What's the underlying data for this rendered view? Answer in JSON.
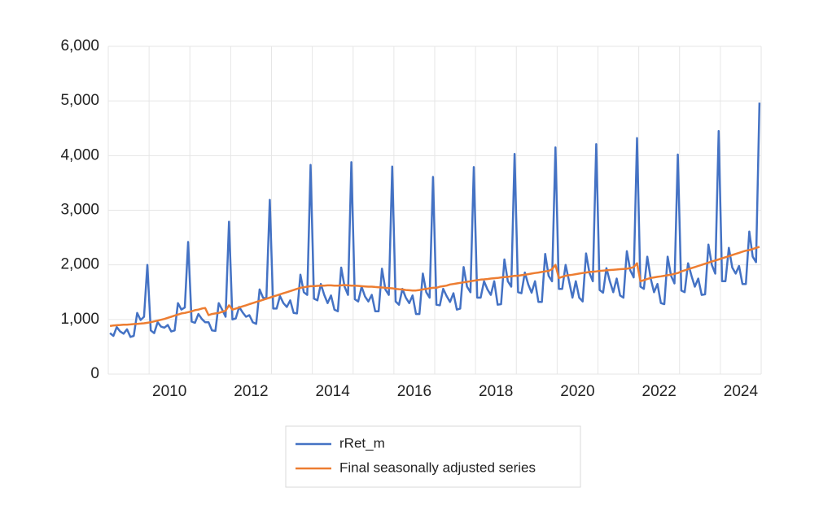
{
  "chart_data": {
    "type": "line",
    "xlim": [
      2009,
      2025
    ],
    "xgrid": [
      2009,
      2010,
      2011,
      2012,
      2013,
      2014,
      2015,
      2016,
      2017,
      2018,
      2019,
      2020,
      2021,
      2022,
      2023,
      2024,
      2025
    ],
    "xticks": [
      {
        "value": 2010.5,
        "label": "2010"
      },
      {
        "value": 2012.5,
        "label": "2012"
      },
      {
        "value": 2014.5,
        "label": "2014"
      },
      {
        "value": 2016.5,
        "label": "2016"
      },
      {
        "value": 2018.5,
        "label": "2018"
      },
      {
        "value": 2020.5,
        "label": "2020"
      },
      {
        "value": 2022.5,
        "label": "2022"
      },
      {
        "value": 2024.5,
        "label": "2024"
      }
    ],
    "ylim": [
      0,
      6000
    ],
    "yticks": [
      0,
      {
        "value": 1000,
        "label": "1,000"
      },
      {
        "value": 2000,
        "label": "2,000"
      },
      {
        "value": 3000,
        "label": "3,000"
      },
      {
        "value": 4000,
        "label": "4,000"
      },
      {
        "value": 5000,
        "label": "5,000"
      },
      {
        "value": 6000,
        "label": "6,000"
      }
    ],
    "grid": true,
    "legend": "bottom",
    "x": [
      2009.042,
      2009.125,
      2009.208,
      2009.292,
      2009.375,
      2009.458,
      2009.542,
      2009.625,
      2009.708,
      2009.792,
      2009.875,
      2009.958,
      2010.042,
      2010.125,
      2010.208,
      2010.292,
      2010.375,
      2010.458,
      2010.542,
      2010.625,
      2010.708,
      2010.792,
      2010.875,
      2010.958,
      2011.042,
      2011.125,
      2011.208,
      2011.292,
      2011.375,
      2011.458,
      2011.542,
      2011.625,
      2011.708,
      2011.792,
      2011.875,
      2011.958,
      2012.042,
      2012.125,
      2012.208,
      2012.292,
      2012.375,
      2012.458,
      2012.542,
      2012.625,
      2012.708,
      2012.792,
      2012.875,
      2012.958,
      2013.042,
      2013.125,
      2013.208,
      2013.292,
      2013.375,
      2013.458,
      2013.542,
      2013.625,
      2013.708,
      2013.792,
      2013.875,
      2013.958,
      2014.042,
      2014.125,
      2014.208,
      2014.292,
      2014.375,
      2014.458,
      2014.542,
      2014.625,
      2014.708,
      2014.792,
      2014.875,
      2014.958,
      2015.042,
      2015.125,
      2015.208,
      2015.292,
      2015.375,
      2015.458,
      2015.542,
      2015.625,
      2015.708,
      2015.792,
      2015.875,
      2015.958,
      2016.042,
      2016.125,
      2016.208,
      2016.292,
      2016.375,
      2016.458,
      2016.542,
      2016.625,
      2016.708,
      2016.792,
      2016.875,
      2016.958,
      2017.042,
      2017.125,
      2017.208,
      2017.292,
      2017.375,
      2017.458,
      2017.542,
      2017.625,
      2017.708,
      2017.792,
      2017.875,
      2017.958,
      2018.042,
      2018.125,
      2018.208,
      2018.292,
      2018.375,
      2018.458,
      2018.542,
      2018.625,
      2018.708,
      2018.792,
      2018.875,
      2018.958,
      2019.042,
      2019.125,
      2019.208,
      2019.292,
      2019.375,
      2019.458,
      2019.542,
      2019.625,
      2019.708,
      2019.792,
      2019.875,
      2019.958,
      2020.042,
      2020.125,
      2020.208,
      2020.292,
      2020.375,
      2020.458,
      2020.542,
      2020.625,
      2020.708,
      2020.792,
      2020.875,
      2020.958,
      2021.042,
      2021.125,
      2021.208,
      2021.292,
      2021.375,
      2021.458,
      2021.542,
      2021.625,
      2021.708,
      2021.792,
      2021.875,
      2021.958,
      2022.042,
      2022.125,
      2022.208,
      2022.292,
      2022.375,
      2022.458,
      2022.542,
      2022.625,
      2022.708,
      2022.792,
      2022.875,
      2022.958,
      2023.042,
      2023.125,
      2023.208,
      2023.292,
      2023.375,
      2023.458,
      2023.542,
      2023.625,
      2023.708,
      2023.792,
      2023.875,
      2023.958,
      2024.042,
      2024.125,
      2024.208,
      2024.292,
      2024.375,
      2024.458,
      2024.542,
      2024.625,
      2024.708,
      2024.792,
      2024.875,
      2024.958
    ],
    "series": [
      {
        "name": "rRet_m",
        "color": "#4472c4",
        "values": [
          750,
          700,
          860,
          780,
          740,
          820,
          680,
          700,
          1120,
          990,
          1050,
          2000,
          800,
          750,
          950,
          870,
          850,
          900,
          780,
          800,
          1300,
          1180,
          1220,
          2420,
          960,
          940,
          1100,
          1010,
          950,
          950,
          800,
          790,
          1300,
          1180,
          1050,
          2790,
          1000,
          1020,
          1230,
          1130,
          1050,
          1080,
          950,
          920,
          1550,
          1400,
          1380,
          3190,
          1200,
          1200,
          1430,
          1300,
          1230,
          1350,
          1120,
          1110,
          1820,
          1500,
          1450,
          3830,
          1380,
          1350,
          1650,
          1450,
          1300,
          1440,
          1180,
          1150,
          1950,
          1600,
          1450,
          3880,
          1370,
          1330,
          1600,
          1420,
          1330,
          1450,
          1150,
          1150,
          1930,
          1550,
          1450,
          3800,
          1330,
          1270,
          1560,
          1400,
          1300,
          1440,
          1100,
          1100,
          1840,
          1500,
          1400,
          3610,
          1270,
          1260,
          1560,
          1430,
          1320,
          1480,
          1180,
          1200,
          1960,
          1600,
          1500,
          3790,
          1400,
          1400,
          1700,
          1550,
          1450,
          1700,
          1270,
          1280,
          2100,
          1700,
          1600,
          4030,
          1500,
          1480,
          1860,
          1640,
          1490,
          1700,
          1320,
          1320,
          2200,
          1800,
          1700,
          4150,
          1560,
          1560,
          2000,
          1700,
          1400,
          1700,
          1400,
          1330,
          2210,
          1850,
          1700,
          4210,
          1540,
          1490,
          1940,
          1700,
          1500,
          1750,
          1440,
          1400,
          2250,
          1900,
          1770,
          4320,
          1600,
          1560,
          2150,
          1750,
          1500,
          1650,
          1300,
          1280,
          2150,
          1800,
          1660,
          4020,
          1530,
          1500,
          2030,
          1800,
          1600,
          1750,
          1450,
          1460,
          2370,
          2000,
          1840,
          4450,
          1700,
          1700,
          2310,
          1950,
          1840,
          1980,
          1650,
          1650,
          2610,
          2150,
          2050,
          4970
        ]
      },
      {
        "name": "Final seasonally adjusted series",
        "color": "#ed7d31",
        "values": [
          880,
          890,
          895,
          900,
          905,
          905,
          910,
          915,
          920,
          925,
          930,
          940,
          950,
          965,
          980,
          995,
          1010,
          1030,
          1050,
          1070,
          1090,
          1110,
          1120,
          1135,
          1150,
          1170,
          1180,
          1200,
          1210,
          1080,
          1100,
          1110,
          1120,
          1140,
          1160,
          1260,
          1180,
          1200,
          1220,
          1240,
          1260,
          1280,
          1300,
          1320,
          1340,
          1360,
          1380,
          1400,
          1420,
          1440,
          1460,
          1480,
          1500,
          1520,
          1540,
          1560,
          1580,
          1590,
          1600,
          1610,
          1610,
          1615,
          1620,
          1620,
          1625,
          1625,
          1620,
          1620,
          1625,
          1630,
          1625,
          1620,
          1620,
          1615,
          1610,
          1605,
          1600,
          1600,
          1595,
          1590,
          1585,
          1580,
          1575,
          1570,
          1560,
          1555,
          1550,
          1540,
          1535,
          1530,
          1530,
          1540,
          1550,
          1560,
          1570,
          1580,
          1580,
          1600,
          1610,
          1620,
          1640,
          1650,
          1660,
          1670,
          1680,
          1690,
          1700,
          1710,
          1720,
          1730,
          1735,
          1740,
          1750,
          1755,
          1760,
          1770,
          1775,
          1780,
          1790,
          1800,
          1800,
          1810,
          1820,
          1830,
          1840,
          1850,
          1860,
          1870,
          1880,
          1890,
          1920,
          2000,
          1760,
          1780,
          1800,
          1810,
          1820,
          1830,
          1840,
          1850,
          1860,
          1870,
          1875,
          1880,
          1890,
          1895,
          1900,
          1905,
          1910,
          1915,
          1920,
          1925,
          1930,
          1940,
          1960,
          2030,
          1700,
          1720,
          1740,
          1760,
          1770,
          1780,
          1790,
          1800,
          1810,
          1820,
          1835,
          1850,
          1880,
          1900,
          1920,
          1940,
          1960,
          1980,
          2000,
          2020,
          2040,
          2060,
          2080,
          2100,
          2120,
          2140,
          2160,
          2180,
          2200,
          2220,
          2240,
          2260,
          2270,
          2290,
          2310,
          2330
        ]
      }
    ]
  }
}
